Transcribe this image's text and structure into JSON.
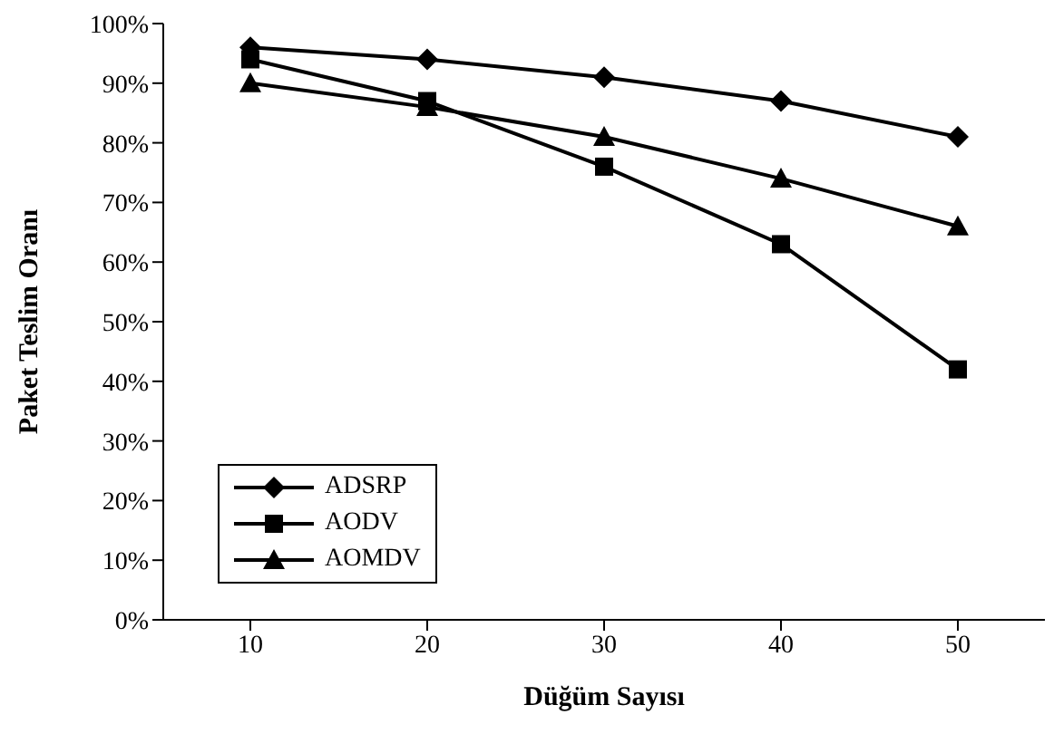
{
  "chart_data": {
    "type": "line",
    "xlabel": "Düğüm Sayısı",
    "ylabel": "Paket Teslim Oranı",
    "categories": [
      "10",
      "20",
      "30",
      "40",
      "50"
    ],
    "series": [
      {
        "name": "ADSRP",
        "color": "#000000",
        "marker": "diamond",
        "values": [
          0.96,
          0.94,
          0.91,
          0.87,
          0.81
        ]
      },
      {
        "name": "AODV",
        "color": "#000000",
        "marker": "square",
        "values": [
          0.94,
          0.87,
          0.76,
          0.63,
          0.42
        ]
      },
      {
        "name": "AOMDV",
        "color": "#000000",
        "marker": "triangle",
        "values": [
          0.9,
          0.86,
          0.81,
          0.74,
          0.66
        ]
      }
    ],
    "ylim": [
      0,
      1
    ],
    "yticks": [
      {
        "value": 0,
        "label": "0%"
      },
      {
        "value": 0.1,
        "label": "10%"
      },
      {
        "value": 0.2,
        "label": "20%"
      },
      {
        "value": 0.3,
        "label": "30%"
      },
      {
        "value": 0.4,
        "label": "40%"
      },
      {
        "value": 0.5,
        "label": "50%"
      },
      {
        "value": 0.6,
        "label": "60%"
      },
      {
        "value": 0.7,
        "label": "70%"
      },
      {
        "value": 0.8,
        "label": "80%"
      },
      {
        "value": 0.9,
        "label": "90%"
      },
      {
        "value": 1,
        "label": "100%"
      }
    ],
    "grid": false,
    "legend": "bottom left",
    "line_style": "solid"
  }
}
